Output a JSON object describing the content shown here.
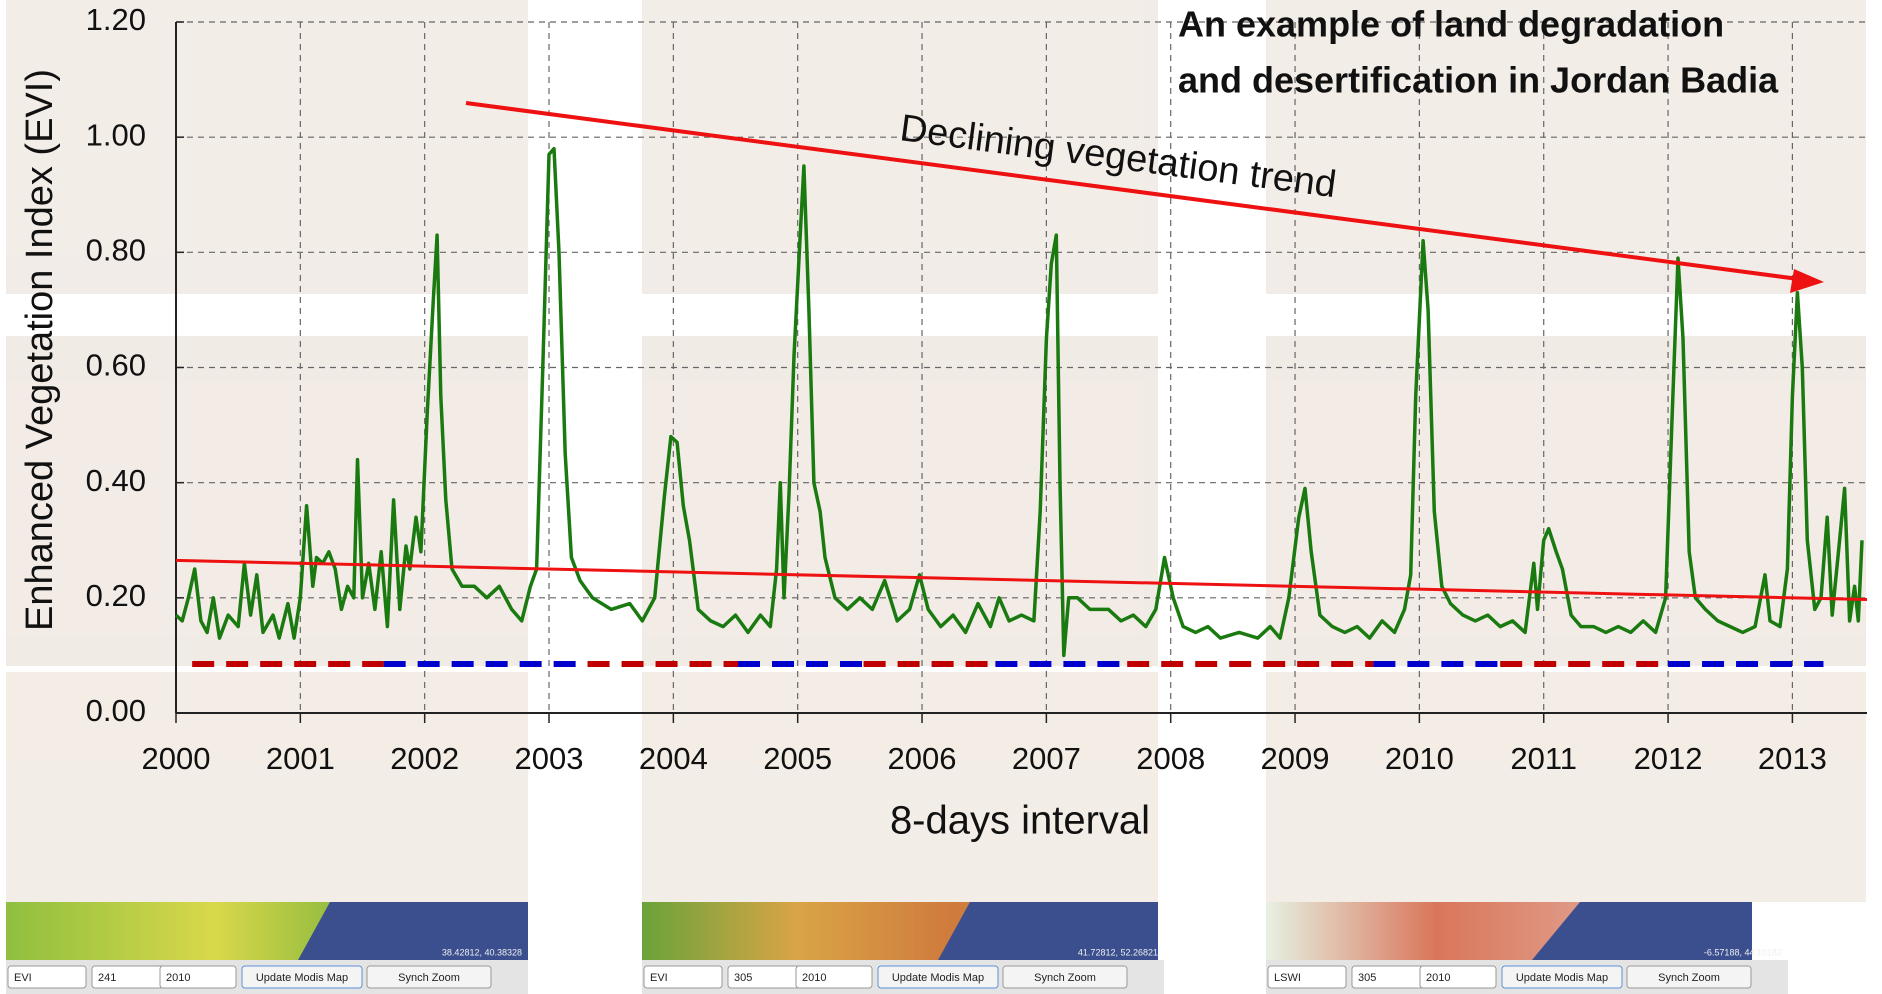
{
  "chart_data": {
    "type": "line",
    "title": [
      "An example of land degradation",
      "and desertification in Jordan Badia"
    ],
    "annotation": "Declining vegetation trend",
    "x_label": "8-days interval",
    "y_label": "Enhanced Vegetation Index (EVI)",
    "xlim": [
      2000,
      2013.6
    ],
    "ylim": [
      0,
      1.2
    ],
    "xticks": [
      2000,
      2001,
      2002,
      2003,
      2004,
      2005,
      2006,
      2007,
      2008,
      2009,
      2010,
      2011,
      2012,
      2013
    ],
    "yticks": [
      {
        "value": 0,
        "label": "0.00"
      },
      {
        "value": 0.2,
        "label": "0.20"
      },
      {
        "value": 0.4,
        "label": "0.40"
      },
      {
        "value": 0.6,
        "label": "0.60"
      },
      {
        "value": 0.8,
        "label": "0.80"
      },
      {
        "value": 1.0,
        "label": "1.00"
      },
      {
        "value": 1.2,
        "label": "1.20"
      }
    ],
    "grid": true,
    "x": [
      2000.0,
      2000.05,
      2000.1,
      2000.15,
      2000.2,
      2000.25,
      2000.3,
      2000.35,
      2000.42,
      2000.5,
      2000.55,
      2000.6,
      2000.65,
      2000.7,
      2000.78,
      2000.83,
      2000.9,
      2000.95,
      2001.0,
      2001.05,
      2001.1,
      2001.13,
      2001.18,
      2001.23,
      2001.28,
      2001.33,
      2001.38,
      2001.43,
      2001.46,
      2001.5,
      2001.55,
      2001.6,
      2001.65,
      2001.7,
      2001.75,
      2001.8,
      2001.85,
      2001.88,
      2001.93,
      2001.97,
      2002.02,
      2002.07,
      2002.1,
      2002.13,
      2002.17,
      2002.22,
      2002.3,
      2002.4,
      2002.5,
      2002.6,
      2002.7,
      2002.78,
      2002.85,
      2002.9,
      2002.95,
      2003.0,
      2003.04,
      2003.08,
      2003.13,
      2003.18,
      2003.25,
      2003.35,
      2003.5,
      2003.65,
      2003.75,
      2003.85,
      2003.93,
      2003.98,
      2004.03,
      2004.08,
      2004.13,
      2004.2,
      2004.3,
      2004.4,
      2004.5,
      2004.6,
      2004.7,
      2004.78,
      2004.83,
      2004.86,
      2004.89,
      2004.93,
      2004.97,
      2005.02,
      2005.05,
      2005.09,
      2005.13,
      2005.18,
      2005.22,
      2005.3,
      2005.4,
      2005.5,
      2005.6,
      2005.7,
      2005.8,
      2005.9,
      2005.98,
      2006.05,
      2006.15,
      2006.25,
      2006.35,
      2006.45,
      2006.55,
      2006.62,
      2006.7,
      2006.8,
      2006.9,
      2006.95,
      2007.0,
      2007.04,
      2007.08,
      2007.11,
      2007.14,
      2007.18,
      2007.25,
      2007.35,
      2007.5,
      2007.6,
      2007.7,
      2007.8,
      2007.88,
      2007.95,
      2008.02,
      2008.1,
      2008.2,
      2008.3,
      2008.4,
      2008.55,
      2008.7,
      2008.8,
      2008.88,
      2008.95,
      2009.03,
      2009.08,
      2009.13,
      2009.2,
      2009.3,
      2009.4,
      2009.5,
      2009.6,
      2009.7,
      2009.8,
      2009.88,
      2009.93,
      2009.97,
      2010.03,
      2010.07,
      2010.12,
      2010.18,
      2010.25,
      2010.35,
      2010.45,
      2010.55,
      2010.65,
      2010.75,
      2010.85,
      2010.92,
      2010.95,
      2011.0,
      2011.04,
      2011.1,
      2011.15,
      2011.22,
      2011.3,
      2011.4,
      2011.5,
      2011.6,
      2011.7,
      2011.8,
      2011.9,
      2011.98,
      2012.03,
      2012.08,
      2012.12,
      2012.17,
      2012.22,
      2012.3,
      2012.4,
      2012.5,
      2012.6,
      2012.7,
      2012.78,
      2012.82,
      2012.9,
      2012.96,
      2013.0,
      2013.04,
      2013.08,
      2013.12,
      2013.18,
      2013.23,
      2013.28,
      2013.32,
      2013.38,
      2013.42,
      2013.46,
      2013.5,
      2013.53,
      2013.56
    ],
    "series": [
      {
        "name": "EVI",
        "color": "#1a7a10",
        "values": [
          0.17,
          0.16,
          0.2,
          0.25,
          0.16,
          0.14,
          0.2,
          0.13,
          0.17,
          0.15,
          0.26,
          0.17,
          0.24,
          0.14,
          0.17,
          0.13,
          0.19,
          0.13,
          0.2,
          0.36,
          0.22,
          0.27,
          0.26,
          0.28,
          0.25,
          0.18,
          0.22,
          0.2,
          0.44,
          0.2,
          0.26,
          0.18,
          0.28,
          0.15,
          0.37,
          0.18,
          0.29,
          0.25,
          0.34,
          0.28,
          0.52,
          0.72,
          0.83,
          0.55,
          0.37,
          0.25,
          0.22,
          0.22,
          0.2,
          0.22,
          0.18,
          0.16,
          0.22,
          0.25,
          0.6,
          0.97,
          0.98,
          0.8,
          0.45,
          0.27,
          0.23,
          0.2,
          0.18,
          0.19,
          0.16,
          0.2,
          0.38,
          0.48,
          0.47,
          0.36,
          0.3,
          0.18,
          0.16,
          0.15,
          0.17,
          0.14,
          0.17,
          0.15,
          0.25,
          0.4,
          0.2,
          0.38,
          0.62,
          0.83,
          0.95,
          0.7,
          0.4,
          0.35,
          0.27,
          0.2,
          0.18,
          0.2,
          0.18,
          0.23,
          0.16,
          0.18,
          0.24,
          0.18,
          0.15,
          0.17,
          0.14,
          0.19,
          0.15,
          0.2,
          0.16,
          0.17,
          0.16,
          0.35,
          0.65,
          0.78,
          0.83,
          0.4,
          0.1,
          0.2,
          0.2,
          0.18,
          0.18,
          0.16,
          0.17,
          0.15,
          0.18,
          0.27,
          0.2,
          0.15,
          0.14,
          0.15,
          0.13,
          0.14,
          0.13,
          0.15,
          0.13,
          0.2,
          0.34,
          0.39,
          0.28,
          0.17,
          0.15,
          0.14,
          0.15,
          0.13,
          0.16,
          0.14,
          0.18,
          0.24,
          0.55,
          0.82,
          0.7,
          0.35,
          0.22,
          0.19,
          0.17,
          0.16,
          0.17,
          0.15,
          0.16,
          0.14,
          0.26,
          0.18,
          0.3,
          0.32,
          0.28,
          0.25,
          0.17,
          0.15,
          0.15,
          0.14,
          0.15,
          0.14,
          0.16,
          0.14,
          0.2,
          0.5,
          0.79,
          0.65,
          0.28,
          0.2,
          0.18,
          0.16,
          0.15,
          0.14,
          0.15,
          0.24,
          0.16,
          0.15,
          0.25,
          0.55,
          0.73,
          0.6,
          0.3,
          0.18,
          0.2,
          0.34,
          0.17,
          0.3,
          0.39,
          0.16,
          0.22,
          0.16,
          0.3
        ]
      }
    ],
    "trend_line": {
      "color": "#ee1111",
      "x": [
        2000,
        2013.6
      ],
      "values": [
        0.265,
        0.197
      ]
    },
    "band_y": 0.085,
    "bands": [
      {
        "start": 2000.13,
        "end": 2001.67,
        "color": "#c00000"
      },
      {
        "start": 2001.67,
        "end": 2003.31,
        "color": "#0000cc"
      },
      {
        "start": 2003.31,
        "end": 2004.52,
        "color": "#c00000"
      },
      {
        "start": 2004.52,
        "end": 2005.53,
        "color": "#0000cc"
      },
      {
        "start": 2005.53,
        "end": 2006.59,
        "color": "#c00000"
      },
      {
        "start": 2006.59,
        "end": 2007.65,
        "color": "#0000cc"
      },
      {
        "start": 2007.65,
        "end": 2009.63,
        "color": "#c00000"
      },
      {
        "start": 2009.63,
        "end": 2010.65,
        "color": "#0000cc"
      },
      {
        "start": 2010.65,
        "end": 2012.0,
        "color": "#c00000"
      },
      {
        "start": 2012.0,
        "end": 2013.25,
        "color": "#0000cc"
      }
    ]
  },
  "map_panels": [
    {
      "controls": [
        "EVI",
        "241",
        "2010",
        "Update Modis Map",
        "Synch Zoom"
      ],
      "coords": "38.42812, 40.38328"
    },
    {
      "controls": [
        "EVI",
        "305",
        "2010",
        "Update Modis Map",
        "Synch Zoom"
      ],
      "coords": "41.72812, 52.26821"
    },
    {
      "controls": [
        "LSWI",
        "305",
        "2010",
        "Update Modis Map",
        "Synch Zoom"
      ],
      "coords": "-6.57188, 44.10182"
    }
  ]
}
